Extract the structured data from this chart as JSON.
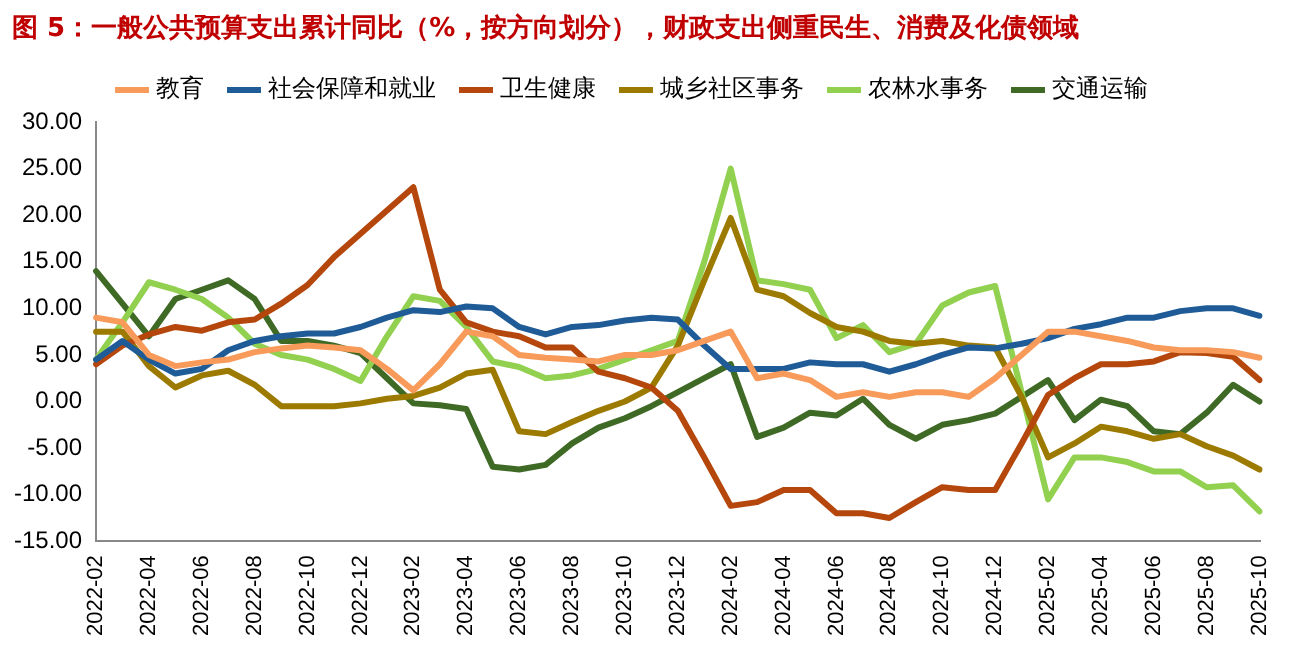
{
  "chart_data": {
    "type": "line",
    "title": "图 5：一般公共预算支出累计同比（%，按方向划分），财政支出侧重民生、消费及化债领域",
    "categories": [
      "2022-02",
      null,
      "2022-04",
      null,
      "2022-06",
      null,
      "2022-08",
      null,
      "2022-10",
      null,
      "2022-12",
      null,
      "2023-02",
      null,
      "2023-04",
      null,
      "2023-06",
      null,
      "2023-08",
      null,
      "2023-10",
      null,
      "2023-12",
      null,
      "2024-02",
      null,
      "2024-04",
      null,
      "2024-06",
      null,
      "2024-08",
      null,
      "2024-10",
      null,
      "2024-12",
      null,
      "2025-02",
      null,
      "2025-04",
      null,
      "2025-06",
      null,
      "2025-08",
      null,
      "2025-10"
    ],
    "series": [
      {
        "name": "教育",
        "color": "#f79a5a",
        "values": [
          9.0,
          8.5,
          5.0,
          3.8,
          4.2,
          4.5,
          5.3,
          5.7,
          6.0,
          5.8,
          5.5,
          3.5,
          1.2,
          4.0,
          7.5,
          7.0,
          5.0,
          4.7,
          4.5,
          4.3,
          5.0,
          5.0,
          5.5,
          6.5,
          7.5,
          2.5,
          3.0,
          2.3,
          0.5,
          1.0,
          0.5,
          1.0,
          1.0,
          0.5,
          2.5,
          5.0,
          7.5,
          7.5,
          7.0,
          6.5,
          5.8,
          5.5,
          5.5,
          5.3,
          4.7
        ]
      },
      {
        "name": "社会保障和就业",
        "color": "#1f5b96",
        "values": [
          4.5,
          6.5,
          4.5,
          3.0,
          3.5,
          5.5,
          6.5,
          7.0,
          7.3,
          7.3,
          8.0,
          9.0,
          9.8,
          9.6,
          10.2,
          10.0,
          8.0,
          7.2,
          8.0,
          8.2,
          8.7,
          9.0,
          8.8,
          6.0,
          3.5,
          3.5,
          3.5,
          4.2,
          4.0,
          4.0,
          3.2,
          4.0,
          5.0,
          5.8,
          5.7,
          6.2,
          6.8,
          7.8,
          8.3,
          9.0,
          9.0,
          9.7,
          10.0,
          10.0,
          9.2
        ]
      },
      {
        "name": "卫生健康",
        "color": "#b5470d",
        "values": [
          4.0,
          6.0,
          7.2,
          8.0,
          7.6,
          8.5,
          8.8,
          10.5,
          12.5,
          15.5,
          18.0,
          20.5,
          23.0,
          12.0,
          8.5,
          7.5,
          7.0,
          5.8,
          5.8,
          3.2,
          2.5,
          1.5,
          -1.0,
          -6.0,
          -11.2,
          -10.8,
          -9.5,
          -9.5,
          -12.0,
          -12.0,
          -12.5,
          -10.8,
          -9.2,
          -9.5,
          -9.5,
          -4.5,
          0.7,
          2.5,
          4.0,
          4.0,
          4.3,
          5.3,
          5.2,
          4.8,
          2.3
        ]
      },
      {
        "name": "城乡社区事务",
        "color": "#9c7a00",
        "values": [
          7.5,
          7.5,
          3.8,
          1.5,
          2.8,
          3.3,
          1.8,
          -0.5,
          -0.5,
          -0.5,
          -0.2,
          0.3,
          0.6,
          1.5,
          3.0,
          3.4,
          -3.2,
          -3.5,
          -2.2,
          -1.0,
          0.0,
          1.5,
          6.0,
          13.0,
          19.7,
          12.0,
          11.3,
          9.5,
          8.0,
          7.5,
          6.5,
          6.2,
          6.5,
          6.0,
          5.8,
          0.5,
          -6.0,
          -4.5,
          -2.7,
          -3.2,
          -4.0,
          -3.5,
          -4.8,
          -5.8,
          -7.3
        ]
      },
      {
        "name": "农林水事务",
        "color": "#92d050",
        "values": [
          4.5,
          8.5,
          12.8,
          12.0,
          11.0,
          9.0,
          6.2,
          5.0,
          4.5,
          3.5,
          2.2,
          7.0,
          11.3,
          10.8,
          8.0,
          4.3,
          3.7,
          2.5,
          2.8,
          3.5,
          4.5,
          5.5,
          6.5,
          15.0,
          25.0,
          13.0,
          12.6,
          12.0,
          6.8,
          8.2,
          5.3,
          6.2,
          10.3,
          11.7,
          12.4,
          1.0,
          -10.5,
          -6.0,
          -6.0,
          -6.5,
          -7.5,
          -7.5,
          -9.2,
          -9.0,
          -11.8
        ]
      },
      {
        "name": "交通运输",
        "color": "#3f6a25",
        "values": [
          14.0,
          10.5,
          7.0,
          11.0,
          12.0,
          13.0,
          11.0,
          6.5,
          6.5,
          6.0,
          5.2,
          2.5,
          -0.2,
          -0.4,
          -0.8,
          -7.0,
          -7.3,
          -6.8,
          -4.5,
          -2.8,
          -1.8,
          -0.5,
          1.0,
          2.5,
          4.0,
          -3.8,
          -2.8,
          -1.2,
          -1.5,
          0.3,
          -2.5,
          -4.0,
          -2.5,
          -2.0,
          -1.3,
          0.5,
          2.3,
          -2.0,
          0.2,
          -0.5,
          -3.2,
          -3.5,
          -1.2,
          1.8,
          0.0
        ]
      }
    ],
    "ylim": [
      -15,
      30
    ],
    "yticks": [
      {
        "value": -15,
        "label": "-15.00"
      },
      {
        "value": -10,
        "label": "-10.00"
      },
      {
        "value": -5,
        "label": "-5.00"
      },
      {
        "value": 0,
        "label": "0.00"
      },
      {
        "value": 5,
        "label": "5.00"
      },
      {
        "value": 10,
        "label": "10.00"
      },
      {
        "value": 15,
        "label": "15.00"
      },
      {
        "value": 20,
        "label": "20.00"
      },
      {
        "value": 25,
        "label": "25.00"
      },
      {
        "value": 30,
        "label": "30.00"
      }
    ],
    "grid": false,
    "legend": "top",
    "marker": "none",
    "line_style": "solid"
  }
}
